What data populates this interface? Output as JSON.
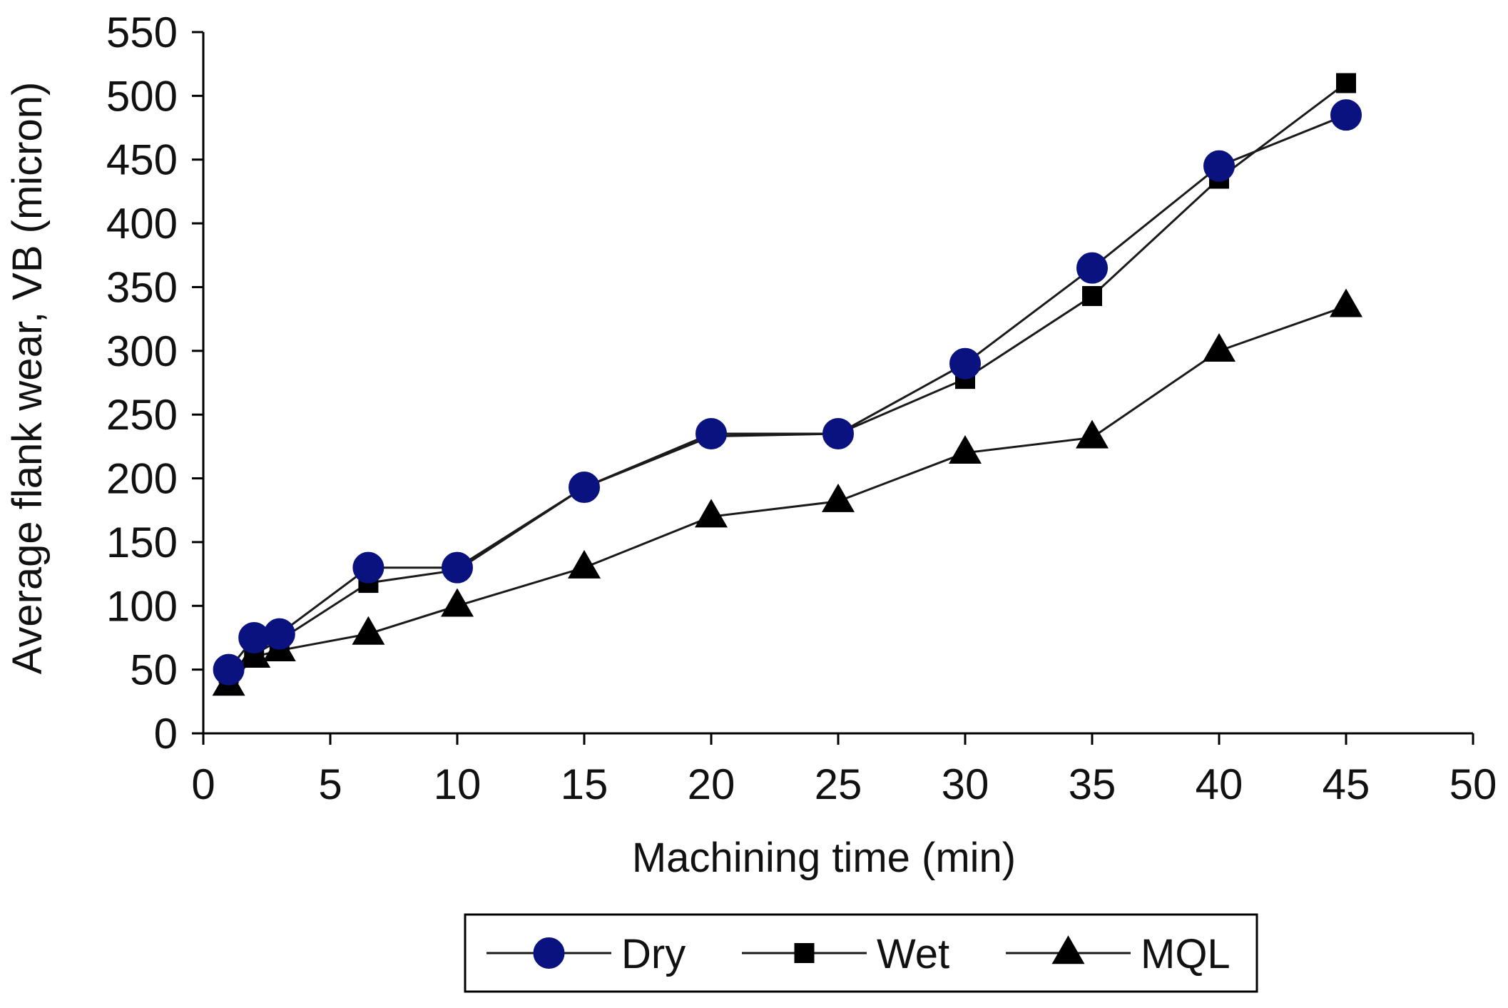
{
  "chart_data": {
    "type": "line",
    "title": "",
    "xlabel": "Machining time (min)",
    "ylabel": "Average flank wear, VB (micron)",
    "xlim": [
      0,
      50
    ],
    "ylim": [
      0,
      550
    ],
    "x_ticks": [
      0,
      5,
      10,
      15,
      20,
      25,
      30,
      35,
      40,
      45,
      50
    ],
    "y_ticks": [
      0,
      50,
      100,
      150,
      200,
      250,
      300,
      350,
      400,
      450,
      500,
      550
    ],
    "grid": false,
    "legend_position": "bottom",
    "series": [
      {
        "name": "Dry",
        "marker": "circle",
        "marker_color": "#0a1280",
        "x": [
          1,
          2,
          3,
          6.5,
          10,
          15,
          20,
          25,
          30,
          35,
          40,
          45
        ],
        "y": [
          50,
          75,
          78,
          130,
          130,
          193,
          235,
          235,
          290,
          365,
          445,
          485
        ]
      },
      {
        "name": "Wet",
        "marker": "square",
        "marker_color": "#000000",
        "x": [
          1,
          2,
          3,
          6.5,
          10,
          15,
          20,
          25,
          30,
          35,
          40,
          45
        ],
        "y": [
          47,
          62,
          73,
          118,
          128,
          193,
          233,
          235,
          278,
          343,
          435,
          510
        ]
      },
      {
        "name": "MQL",
        "marker": "triangle",
        "marker_color": "#000000",
        "x": [
          1,
          2,
          3,
          6.5,
          10,
          15,
          20,
          25,
          30,
          35,
          40,
          45
        ],
        "y": [
          38,
          60,
          65,
          78,
          100,
          130,
          170,
          182,
          220,
          232,
          300,
          335
        ]
      }
    ]
  }
}
